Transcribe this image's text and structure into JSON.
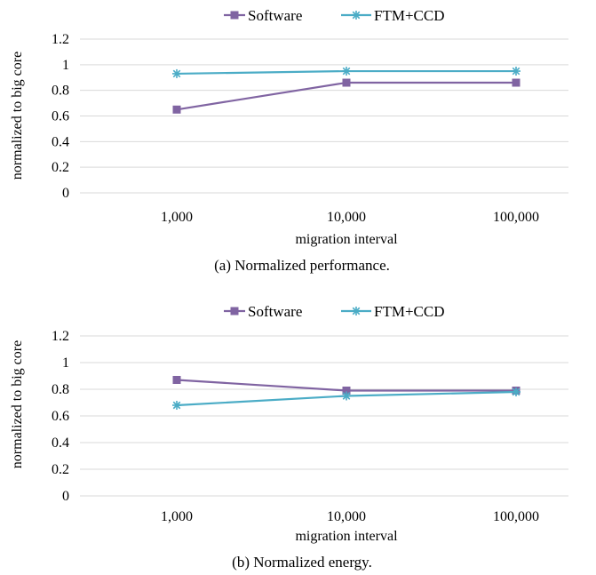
{
  "chart_data": [
    {
      "type": "line",
      "caption": "(a) Normalized performance.",
      "xlabel": "migration interval",
      "ylabel": "normalized to big core",
      "categories": [
        "1,000",
        "10,000",
        "100,000"
      ],
      "ylim": [
        0,
        1.2
      ],
      "yticks": [
        "0",
        "0.2",
        "0.4",
        "0.6",
        "0.8",
        "1",
        "1.2"
      ],
      "grid": true,
      "legend_position": "top",
      "series": [
        {
          "name": "Software",
          "values": [
            0.65,
            0.86,
            0.86
          ],
          "color": "#8064a2",
          "marker": "square"
        },
        {
          "name": "FTM+CCD",
          "values": [
            0.93,
            0.95,
            0.95
          ],
          "color": "#4bacc6",
          "marker": "star"
        }
      ]
    },
    {
      "type": "line",
      "caption": "(b) Normalized energy.",
      "xlabel": "migration interval",
      "ylabel": "normalized to big core",
      "categories": [
        "1,000",
        "10,000",
        "100,000"
      ],
      "ylim": [
        0,
        1.2
      ],
      "yticks": [
        "0",
        "0.2",
        "0.4",
        "0.6",
        "0.8",
        "1",
        "1.2"
      ],
      "grid": true,
      "legend_position": "top",
      "series": [
        {
          "name": "Software",
          "values": [
            0.87,
            0.79,
            0.79
          ],
          "color": "#8064a2",
          "marker": "square"
        },
        {
          "name": "FTM+CCD",
          "values": [
            0.68,
            0.75,
            0.78
          ],
          "color": "#4bacc6",
          "marker": "star"
        }
      ]
    }
  ]
}
